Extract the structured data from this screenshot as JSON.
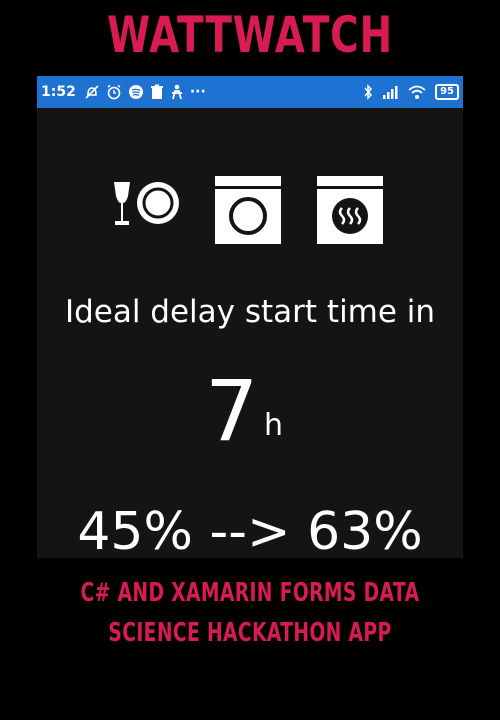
{
  "banner": {
    "title": "WATTWATCH"
  },
  "status_bar": {
    "time": "1:52",
    "more": "···",
    "battery": "95",
    "icons_left": [
      "do-not-disturb-icon",
      "alarm-icon",
      "spotify-icon",
      "trash-icon",
      "figure-icon"
    ],
    "icons_right": [
      "bluetooth-icon",
      "cellular-signal-icon",
      "wifi-icon",
      "battery-icon"
    ]
  },
  "appliances": [
    "dishwasher-icon",
    "washing-machine-icon",
    "dryer-icon"
  ],
  "main": {
    "headline": "Ideal delay start time in",
    "hours_value": "7",
    "hours_unit": "h",
    "efficiency_text": "45% --> 63%"
  },
  "caption": {
    "line1": "C# AND XAMARIN FORMS DATA",
    "line2": "SCIENCE HACKATHON APP"
  },
  "colors": {
    "accent": "#d81b50",
    "status_bar": "#1e73d2",
    "screen_bg": "#141414",
    "page_bg": "#000000"
  }
}
